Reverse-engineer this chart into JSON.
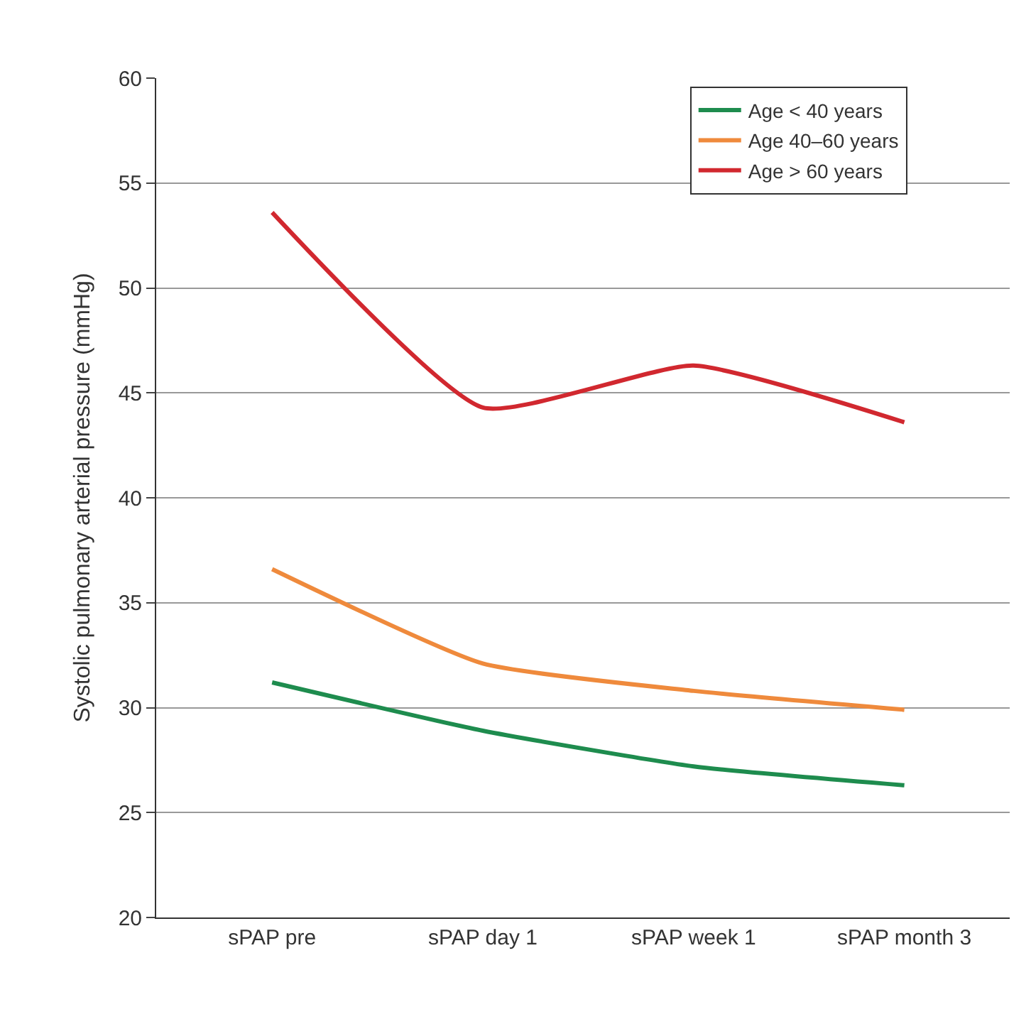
{
  "chart_data": {
    "type": "line",
    "ylabel": "Systolic pulmonary arterial pressure (mmHg)",
    "categories": [
      "sPAP pre",
      "sPAP day 1",
      "sPAP week 1",
      "sPAP month 3"
    ],
    "series": [
      {
        "name": "Age < 40 years",
        "color": "#1e8c4e",
        "values": [
          31.2,
          28.9,
          27.2,
          26.3
        ]
      },
      {
        "name": "Age 40–60 years",
        "color": "#ef8a3c",
        "values": [
          36.6,
          32.1,
          30.8,
          29.9
        ]
      },
      {
        "name": "Age > 60 years",
        "color": "#d1282f",
        "values": [
          53.6,
          44.3,
          46.3,
          43.6
        ]
      }
    ],
    "ylim": [
      20,
      60
    ],
    "yticks": [
      20,
      25,
      30,
      35,
      40,
      45,
      50,
      55,
      60
    ],
    "grid": "y",
    "legend": "top right",
    "marker": "none",
    "line_style": "solid"
  }
}
